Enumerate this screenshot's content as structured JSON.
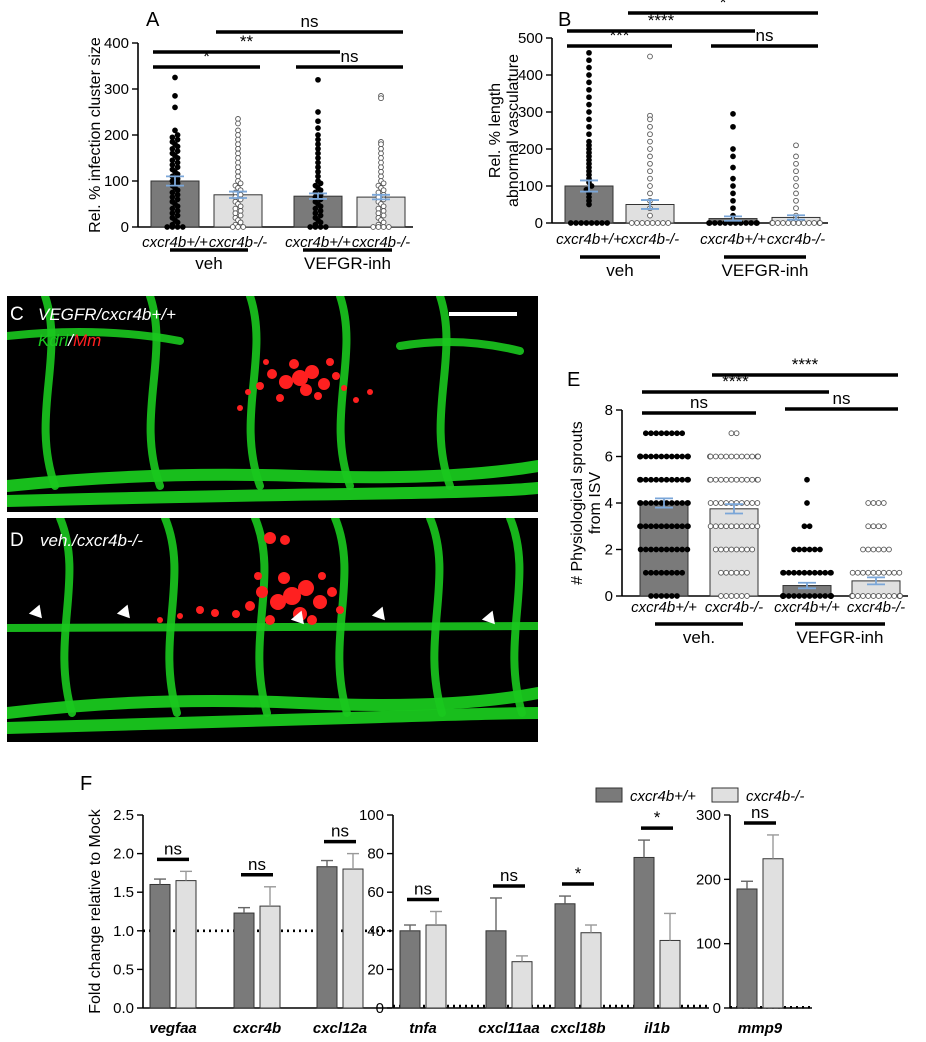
{
  "colors": {
    "dark_bar": "#7a7a7a",
    "light_bar": "#e0e0e0",
    "error_bar": "#7aa6d8",
    "vessel": "#19c81e",
    "bacteria": "#ff2020"
  },
  "panels": {
    "A": {
      "letter": "A",
      "group_labels": [
        "veh",
        "VEFGR-inh"
      ]
    },
    "B": {
      "letter": "B",
      "group_labels": [
        "veh",
        "VEFGR-inh"
      ]
    },
    "C": {
      "letter": "C",
      "caption": "VEGFR/cxcr4b+/+",
      "stain_green": "Kdrl",
      "stain_sep": "/",
      "stain_red": "Mm"
    },
    "D": {
      "letter": "D",
      "caption": "veh./cxcr4b-/-"
    },
    "E": {
      "letter": "E",
      "group_labels": [
        "veh.",
        "VEFGR-inh"
      ]
    },
    "F": {
      "letter": "F",
      "legend": [
        "cxcr4b+/+",
        "cxcr4b-/-"
      ]
    }
  },
  "chart_data": [
    {
      "id": "A",
      "type": "bar",
      "style": "scatter-bar",
      "ylabel": "Rel. % infection cluster size",
      "ylim": [
        0,
        400
      ],
      "yticks": [
        0,
        100,
        200,
        300,
        400
      ],
      "categories": [
        "cxcr4b+/+",
        "cxcr4b-/-",
        "cxcr4b+/+",
        "cxcr4b-/-"
      ],
      "values": [
        100,
        70,
        67,
        65
      ],
      "sem": [
        10,
        7,
        6,
        5
      ],
      "fill": [
        "dark",
        "light",
        "dark",
        "light"
      ],
      "points": [
        {
          "type": "filled",
          "values": [
            0,
            0,
            0,
            0,
            5,
            10,
            15,
            20,
            25,
            30,
            35,
            40,
            45,
            50,
            55,
            60,
            65,
            70,
            75,
            80,
            85,
            90,
            95,
            100,
            105,
            110,
            115,
            120,
            125,
            130,
            135,
            140,
            145,
            150,
            155,
            160,
            165,
            170,
            175,
            180,
            185,
            190,
            195,
            200,
            210,
            260,
            285,
            325
          ]
        },
        {
          "type": "open",
          "values": [
            0,
            0,
            0,
            5,
            10,
            15,
            20,
            25,
            30,
            35,
            40,
            45,
            50,
            55,
            60,
            65,
            70,
            75,
            80,
            85,
            90,
            95,
            100,
            110,
            120,
            130,
            140,
            150,
            160,
            170,
            180,
            190,
            200,
            210,
            225,
            235
          ]
        },
        {
          "type": "filled",
          "values": [
            0,
            0,
            0,
            0,
            5,
            10,
            15,
            20,
            25,
            30,
            35,
            40,
            45,
            50,
            55,
            60,
            65,
            70,
            75,
            80,
            85,
            90,
            95,
            100,
            110,
            120,
            130,
            140,
            150,
            160,
            170,
            180,
            190,
            200,
            215,
            230,
            250,
            320
          ]
        },
        {
          "type": "open",
          "values": [
            0,
            0,
            0,
            0,
            5,
            10,
            15,
            20,
            25,
            30,
            35,
            40,
            45,
            50,
            55,
            60,
            65,
            70,
            75,
            80,
            85,
            90,
            95,
            100,
            110,
            120,
            130,
            140,
            150,
            160,
            170,
            180,
            185,
            280,
            285
          ]
        }
      ],
      "significance": [
        {
          "from": 0,
          "to": 1,
          "label": "*"
        },
        {
          "from": 0,
          "to": 2,
          "label": "**"
        },
        {
          "from": 1,
          "to": 3,
          "label": "ns"
        },
        {
          "from": 2,
          "to": 3,
          "label": "ns"
        }
      ]
    },
    {
      "id": "B",
      "type": "bar",
      "style": "scatter-bar",
      "ylabel": "Rel. % length abnormal vasculature",
      "ylim": [
        0,
        500
      ],
      "yticks": [
        0,
        100,
        200,
        300,
        400,
        500
      ],
      "categories": [
        "cxcr4b+/+",
        "cxcr4b-/-",
        "cxcr4b+/+",
        "cxcr4b-/-"
      ],
      "values": [
        100,
        50,
        12,
        15
      ],
      "sem": [
        15,
        12,
        6,
        6
      ],
      "fill": [
        "dark",
        "light",
        "dark",
        "light"
      ],
      "points": [
        {
          "type": "filled",
          "values": [
            0,
            0,
            0,
            0,
            0,
            0,
            0,
            0,
            50,
            60,
            70,
            80,
            90,
            100,
            110,
            120,
            130,
            140,
            150,
            160,
            170,
            180,
            190,
            200,
            210,
            220,
            240,
            260,
            280,
            300,
            320,
            340,
            360,
            380,
            400,
            420,
            440,
            460
          ]
        },
        {
          "type": "open",
          "values": [
            0,
            0,
            0,
            0,
            0,
            0,
            0,
            0,
            20,
            40,
            60,
            80,
            100,
            120,
            140,
            160,
            180,
            200,
            220,
            240,
            260,
            280,
            290,
            450
          ]
        },
        {
          "type": "filled",
          "values": [
            0,
            0,
            0,
            0,
            0,
            0,
            0,
            0,
            0,
            0,
            0,
            0,
            20,
            40,
            60,
            80,
            100,
            120,
            150,
            180,
            200,
            260,
            295
          ]
        },
        {
          "type": "open",
          "values": [
            0,
            0,
            0,
            0,
            0,
            0,
            0,
            0,
            0,
            0,
            0,
            0,
            10,
            20,
            40,
            60,
            80,
            100,
            120,
            140,
            160,
            180,
            210
          ]
        }
      ],
      "significance": [
        {
          "from": 0,
          "to": 1,
          "label": "***"
        },
        {
          "from": 0,
          "to": 2,
          "label": "****"
        },
        {
          "from": 1,
          "to": 3,
          "label": "*"
        },
        {
          "from": 2,
          "to": 3,
          "label": "ns"
        }
      ]
    },
    {
      "id": "E",
      "type": "bar",
      "style": "scatter-bar",
      "ylabel": "# Physiological sprouts from ISV",
      "ylim": [
        0,
        8
      ],
      "yticks": [
        0,
        2,
        4,
        6,
        8
      ],
      "categories": [
        "cxcr4b+/+",
        "cxcr4b-/-",
        "cxcr4b+/+",
        "cxcr4b-/-"
      ],
      "values": [
        4.0,
        3.75,
        0.45,
        0.65
      ],
      "sem": [
        0.2,
        0.2,
        0.12,
        0.15
      ],
      "fill": [
        "dark",
        "light",
        "dark",
        "light"
      ],
      "points": [
        {
          "type": "filled",
          "counts": {
            "0": 6,
            "1": 8,
            "2": 10,
            "3": 12,
            "4": 12,
            "5": 14,
            "6": 14,
            "7": 8
          }
        },
        {
          "type": "open",
          "counts": {
            "0": 6,
            "1": 6,
            "2": 8,
            "3": 10,
            "4": 10,
            "5": 12,
            "6": 14,
            "7": 2
          }
        },
        {
          "type": "filled",
          "counts": {
            "0": 20,
            "1": 12,
            "2": 6,
            "3": 2,
            "4": 1,
            "5": 1
          }
        },
        {
          "type": "open",
          "counts": {
            "0": 20,
            "1": 10,
            "2": 6,
            "3": 4,
            "4": 4
          }
        }
      ],
      "significance": [
        {
          "from": 0,
          "to": 1,
          "label": "ns"
        },
        {
          "from": 0,
          "to": 2,
          "label": "****"
        },
        {
          "from": 1,
          "to": 3,
          "label": "****"
        },
        {
          "from": 2,
          "to": 3,
          "label": "ns"
        }
      ]
    },
    {
      "id": "F1",
      "type": "bar",
      "ylabel": "Fold change relative to Mock",
      "ylim": [
        0,
        2.5
      ],
      "yticks": [
        0.0,
        0.5,
        1.0,
        1.5,
        2.0,
        2.5
      ],
      "ytick_labels": [
        "0.0",
        "0.5",
        "1.0",
        "1.5",
        "2.0",
        "2.5"
      ],
      "reference_line": 1.0,
      "categories": [
        "vegfaa",
        "cxcr4b",
        "cxcl12a"
      ],
      "series": [
        {
          "name": "cxcr4b+/+",
          "values": [
            1.6,
            1.23,
            1.83
          ],
          "err": [
            0.07,
            0.07,
            0.08
          ]
        },
        {
          "name": "cxcr4b-/-",
          "values": [
            1.65,
            1.32,
            1.8
          ],
          "err": [
            0.12,
            0.25,
            0.2
          ]
        }
      ],
      "significance": [
        "ns",
        "ns",
        "ns"
      ]
    },
    {
      "id": "F2",
      "type": "bar",
      "ylim": [
        0,
        100
      ],
      "yticks": [
        0,
        20,
        40,
        60,
        80,
        100
      ],
      "reference_line": 1,
      "categories": [
        "tnfa",
        "cxcl11aa",
        "cxcl18b",
        "il1b"
      ],
      "series": [
        {
          "name": "cxcr4b+/+",
          "values": [
            40,
            40,
            54,
            78
          ],
          "err": [
            3,
            17,
            4,
            9
          ]
        },
        {
          "name": "cxcr4b-/-",
          "values": [
            43,
            24,
            39,
            35
          ],
          "err": [
            7,
            3,
            4,
            14
          ]
        }
      ],
      "significance": [
        "ns",
        "ns",
        "*",
        "*"
      ]
    },
    {
      "id": "F3",
      "type": "bar",
      "ylim": [
        0,
        300
      ],
      "yticks": [
        0,
        100,
        200,
        300
      ],
      "reference_line": 1,
      "categories": [
        "mmp9"
      ],
      "series": [
        {
          "name": "cxcr4b+/+",
          "values": [
            185
          ],
          "err": [
            12
          ]
        },
        {
          "name": "cxcr4b-/-",
          "values": [
            232
          ],
          "err": [
            37
          ]
        }
      ],
      "significance": [
        "ns"
      ]
    }
  ]
}
